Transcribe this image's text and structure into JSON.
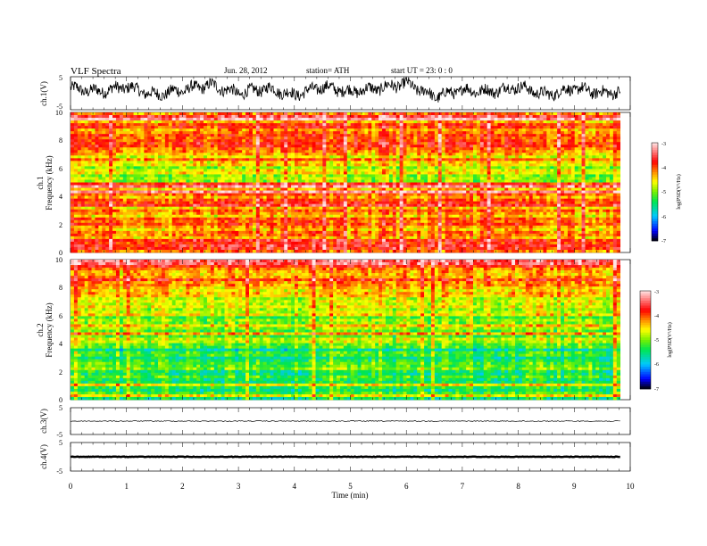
{
  "header": {
    "title": "VLF  Spectra",
    "date": "Jun. 28, 2012",
    "station": "station= ATH",
    "start": "start  UT  =    23: 0  : 0"
  },
  "chart_data": [
    {
      "type": "line",
      "panel": "ch1-waveform",
      "ylabel": "ch.1(V)",
      "ylim": [
        -5,
        5
      ],
      "y_ticks": [
        "5",
        "-5"
      ],
      "x": [
        0,
        0.5,
        1,
        1.5,
        2,
        2.5,
        3,
        3.5,
        4,
        4.5,
        5,
        5.5,
        6,
        6.5,
        7,
        7.5,
        8,
        8.5,
        9,
        9.5,
        9.82
      ],
      "values": [
        1.5,
        0.5,
        2.0,
        -0.5,
        1.0,
        2.5,
        0.0,
        1.5,
        -0.5,
        2.0,
        0.5,
        1.5,
        3.0,
        -1.0,
        1.0,
        0.5,
        2.0,
        -0.5,
        1.5,
        0.0,
        0.5
      ],
      "color": "#000000"
    },
    {
      "type": "heatmap",
      "panel": "ch1-spectrogram",
      "ylabel": "ch.1\nFrequency  (kHz)",
      "ylim": [
        0,
        10
      ],
      "y_ticks": [
        "0",
        "2",
        "4",
        "6",
        "8",
        "10"
      ],
      "colorbar": {
        "label": "log(PSD(V²/Hz)",
        "range": [
          -7,
          -3
        ],
        "ticks": [
          "-3",
          "-4",
          "-5",
          "-6",
          "-7"
        ],
        "colors": [
          "#ffffff",
          "#ff0000",
          "#ffff00",
          "#00ff00",
          "#00ffff",
          "#0000ff",
          "#000000"
        ]
      },
      "dominant_level_by_band": [
        {
          "band_khz": [
            0,
            1
          ],
          "log_psd": -4.0
        },
        {
          "band_khz": [
            1,
            3
          ],
          "log_psd": -4.3
        },
        {
          "band_khz": [
            3,
            5
          ],
          "log_psd": -4.2
        },
        {
          "band_khz": [
            5,
            7
          ],
          "log_psd": -4.7
        },
        {
          "band_khz": [
            7,
            10
          ],
          "log_psd": -4.1
        }
      ]
    },
    {
      "type": "heatmap",
      "panel": "ch2-spectrogram",
      "ylabel": "ch.2\nFrequency  (kHz)",
      "ylim": [
        0,
        10
      ],
      "y_ticks": [
        "0",
        "2",
        "4",
        "6",
        "8",
        "10"
      ],
      "colorbar": {
        "label": "log(PSD(V²/Hz)",
        "range": [
          -7,
          -3
        ],
        "ticks": [
          "-3",
          "-4",
          "-5",
          "-6",
          "-7"
        ],
        "colors": [
          "#ffffff",
          "#ff0000",
          "#ffff00",
          "#00ff00",
          "#00ffff",
          "#0000ff",
          "#000000"
        ]
      },
      "dominant_level_by_band": [
        {
          "band_khz": [
            0,
            1
          ],
          "log_psd": -5.2
        },
        {
          "band_khz": [
            1,
            4
          ],
          "log_psd": -5.4
        },
        {
          "band_khz": [
            4,
            6
          ],
          "log_psd": -5.0
        },
        {
          "band_khz": [
            6,
            8
          ],
          "log_psd": -4.6
        },
        {
          "band_khz": [
            8,
            10
          ],
          "log_psd": -4.1
        }
      ]
    },
    {
      "type": "line",
      "panel": "ch3-waveform",
      "ylabel": "ch.3(V)",
      "ylim": [
        -5,
        5
      ],
      "y_ticks": [
        "5",
        "-5"
      ],
      "x": [
        0,
        9.82
      ],
      "values": [
        0.0,
        0.0
      ],
      "color": "#000000"
    },
    {
      "type": "line",
      "panel": "ch4-waveform",
      "ylabel": "ch.4(V)",
      "ylim": [
        -5,
        5
      ],
      "y_ticks": [
        "5",
        "-5"
      ],
      "x": [
        0,
        9.82
      ],
      "values": [
        0.0,
        0.0
      ],
      "color": "#000000"
    }
  ],
  "x_axis": {
    "label": "Time  (min)",
    "range": [
      0,
      10
    ],
    "ticks": [
      "0",
      "1",
      "2",
      "3",
      "4",
      "5",
      "6",
      "7",
      "8",
      "9",
      "10"
    ]
  }
}
